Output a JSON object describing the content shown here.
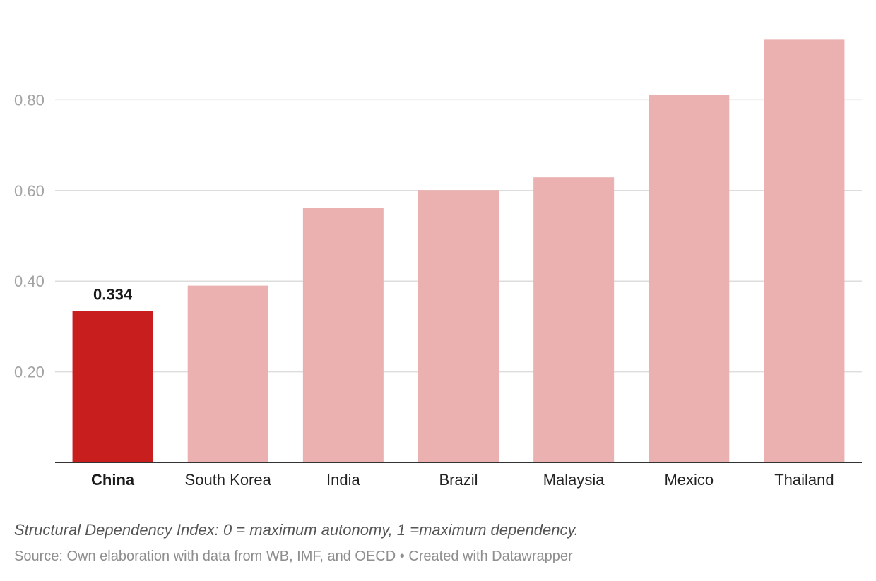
{
  "chart_data": {
    "type": "bar",
    "categories": [
      "China",
      "South Korea",
      "India",
      "Brazil",
      "Malaysia",
      "Mexico",
      "Thailand"
    ],
    "values": [
      0.334,
      0.39,
      0.561,
      0.601,
      0.629,
      0.81,
      0.934
    ],
    "highlight": {
      "category": "China",
      "value_label": "0.334"
    },
    "colors": {
      "highlight": "#c91e1e",
      "default": "#eab1b0",
      "gridline": "#dddddd",
      "axis": "#333333"
    },
    "ylim": [
      0,
      0.96
    ],
    "yticks": [
      0.2,
      0.4,
      0.6,
      0.8
    ],
    "ytick_labels": [
      "0.20",
      "0.40",
      "0.60",
      "0.80"
    ],
    "grid": true,
    "title": "",
    "xlabel": "",
    "ylabel": ""
  },
  "footer": {
    "note": "Structural Dependency Index: 0 = maximum autonomy, 1 =maximum dependency.",
    "source": "Source: Own elaboration with data from WB, IMF, and OECD • Created with Datawrapper"
  }
}
